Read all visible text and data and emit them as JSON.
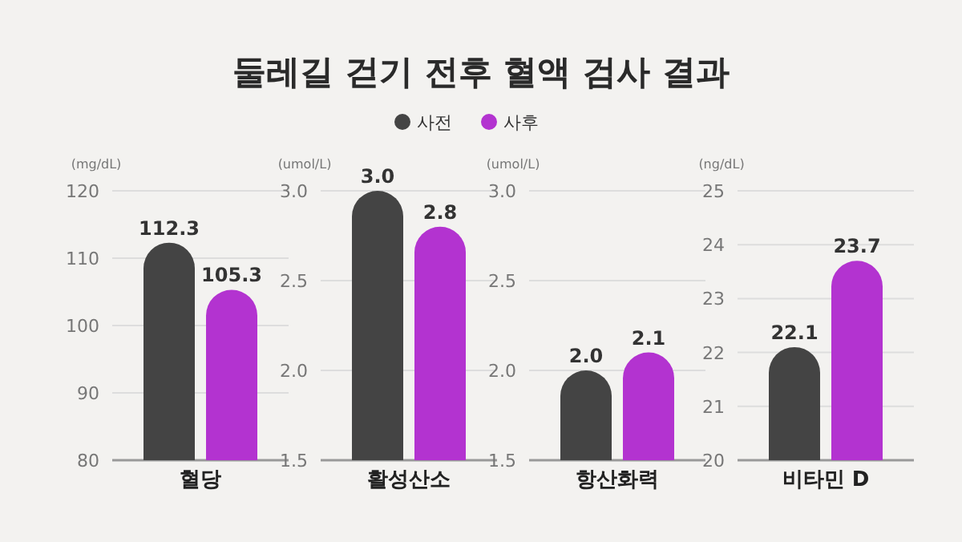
{
  "chart_data": [
    {
      "type": "bar",
      "title": "둘레길 걷기 전후 혈액 검사 결과",
      "legend": "top",
      "ylabel": "(mg/dL)",
      "categories": [
        "혈당"
      ],
      "ylim": [
        80,
        120
      ],
      "yticks": [
        80,
        90,
        100,
        110,
        120
      ],
      "grid": "y",
      "series": [
        {
          "name": "사전",
          "color": "#444444",
          "values": [
            112.3
          ],
          "value_labels": [
            "112.3"
          ]
        },
        {
          "name": "사후",
          "color": "#b333d0",
          "values": [
            105.3
          ],
          "value_labels": [
            "105.3"
          ]
        }
      ]
    },
    {
      "type": "bar",
      "ylabel": "(umol/L)",
      "categories": [
        "활성산소"
      ],
      "ylim": [
        1.5,
        3.0
      ],
      "yticks": [
        {
          "value": 1.5,
          "label": "1.5"
        },
        {
          "value": 2,
          "label": "2.0"
        },
        {
          "value": 2.5,
          "label": "2.5"
        },
        {
          "value": 3,
          "label": "3.0"
        }
      ],
      "grid": "y",
      "series": [
        {
          "color": "#444444",
          "values": [
            3.0
          ],
          "value_labels": [
            "3.0"
          ]
        },
        {
          "color": "#b333d0",
          "values": [
            2.8
          ],
          "value_labels": [
            "2.8"
          ]
        }
      ]
    },
    {
      "type": "bar",
      "ylabel": "(umol/L)",
      "categories": [
        "항산화력"
      ],
      "ylim": [
        1.5,
        3.0
      ],
      "yticks": [
        {
          "value": 1.5,
          "label": "1.5"
        },
        {
          "value": 2,
          "label": "2.0"
        },
        {
          "value": 2.5,
          "label": "2.5"
        },
        {
          "value": 3,
          "label": "3.0"
        }
      ],
      "grid": "y",
      "series": [
        {
          "color": "#444444",
          "values": [
            2.0
          ],
          "value_labels": [
            "2.0"
          ]
        },
        {
          "color": "#b333d0",
          "values": [
            2.1
          ],
          "value_labels": [
            "2.1"
          ]
        }
      ]
    },
    {
      "type": "bar",
      "ylabel": "(ng/dL)",
      "categories": [
        "비타민 D"
      ],
      "ylim": [
        20,
        25
      ],
      "yticks": [
        20,
        21,
        22,
        23,
        24,
        25
      ],
      "grid": "y",
      "series": [
        {
          "color": "#444444",
          "values": [
            22.1
          ],
          "value_labels": [
            "22.1"
          ]
        },
        {
          "color": "#b333d0",
          "values": [
            23.7
          ],
          "value_labels": [
            "23.7"
          ]
        }
      ]
    }
  ]
}
